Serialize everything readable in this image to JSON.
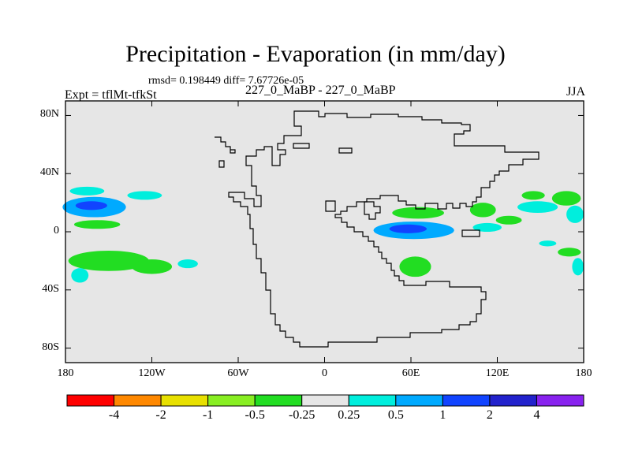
{
  "chart_data": {
    "type": "heatmap",
    "title": "Precipitation - Evaporation (in mm/day)",
    "stats": "rmsd= 0.198449 diff= 7.67726e-05",
    "left_label": "Expt = tflMt-tfkSt",
    "center_label": "227_0_MaBP - 227_0_MaBP",
    "right_label": "JJA",
    "x_ticks": [
      "180",
      "120W",
      "60W",
      "0",
      "60E",
      "120E",
      "180"
    ],
    "x_tick_values": [
      -180,
      -120,
      -60,
      0,
      60,
      120,
      180
    ],
    "y_ticks": [
      "80N",
      "40N",
      "0",
      "40S",
      "80S"
    ],
    "y_tick_values": [
      80,
      40,
      0,
      -40,
      -80
    ],
    "xlim": [
      -180,
      180
    ],
    "ylim": [
      -90,
      90
    ],
    "colorbar": {
      "labels": [
        "-4",
        "-2",
        "-1",
        "-0.5",
        "-0.25",
        "0.25",
        "0.5",
        "1",
        "2",
        "4"
      ],
      "colors": [
        "#ff0000",
        "#ff8800",
        "#e8e000",
        "#88ee22",
        "#22dd22",
        "#e6e6e6",
        "#00eedd",
        "#00aaff",
        "#1144ff",
        "#2222cc",
        "#8822ee"
      ]
    },
    "blobs": [
      {
        "lon": -160,
        "lat": 17,
        "rlon": 22,
        "rlat": 7,
        "level": 0.75
      },
      {
        "lon": -162,
        "lat": 18,
        "rlon": 11,
        "rlat": 3,
        "level": 1.5
      },
      {
        "lon": -165,
        "lat": 28,
        "rlon": 12,
        "rlat": 3,
        "level": 0.4
      },
      {
        "lon": -125,
        "lat": 25,
        "rlon": 12,
        "rlat": 3,
        "level": 0.4
      },
      {
        "lon": -158,
        "lat": 5,
        "rlon": 16,
        "rlat": 3,
        "level": -0.4
      },
      {
        "lon": -150,
        "lat": -20,
        "rlon": 28,
        "rlat": 7,
        "level": -0.4
      },
      {
        "lon": -120,
        "lat": -24,
        "rlon": 14,
        "rlat": 5,
        "level": -0.4
      },
      {
        "lon": -170,
        "lat": -30,
        "rlon": 6,
        "rlat": 5,
        "level": 0.4
      },
      {
        "lon": -95,
        "lat": -22,
        "rlon": 7,
        "rlat": 3,
        "level": 0.4
      },
      {
        "lon": 65,
        "lat": 13,
        "rlon": 18,
        "rlat": 4,
        "level": -0.4
      },
      {
        "lon": 62,
        "lat": 1,
        "rlon": 28,
        "rlat": 6,
        "level": 0.75
      },
      {
        "lon": 58,
        "lat": 2,
        "rlon": 13,
        "rlat": 3,
        "level": 1.5
      },
      {
        "lon": 63,
        "lat": -24,
        "rlon": 11,
        "rlat": 7,
        "level": -0.4
      },
      {
        "lon": 110,
        "lat": 15,
        "rlon": 9,
        "rlat": 5,
        "level": -0.4
      },
      {
        "lon": 113,
        "lat": 3,
        "rlon": 10,
        "rlat": 3,
        "level": 0.4
      },
      {
        "lon": 128,
        "lat": 8,
        "rlon": 9,
        "rlat": 3,
        "level": -0.4
      },
      {
        "lon": 148,
        "lat": 17,
        "rlon": 14,
        "rlat": 4,
        "level": 0.4
      },
      {
        "lon": 145,
        "lat": 25,
        "rlon": 8,
        "rlat": 3,
        "level": -0.4
      },
      {
        "lon": 168,
        "lat": 23,
        "rlon": 10,
        "rlat": 5,
        "level": -0.4
      },
      {
        "lon": 174,
        "lat": 12,
        "rlon": 6,
        "rlat": 6,
        "level": 0.4
      },
      {
        "lon": 170,
        "lat": -14,
        "rlon": 8,
        "rlat": 3,
        "level": -0.4
      },
      {
        "lon": 176,
        "lat": -24,
        "rlon": 4,
        "rlat": 6,
        "level": 0.4
      },
      {
        "lon": 155,
        "lat": -8,
        "rlon": 6,
        "rlat": 2,
        "level": 0.4
      }
    ]
  }
}
